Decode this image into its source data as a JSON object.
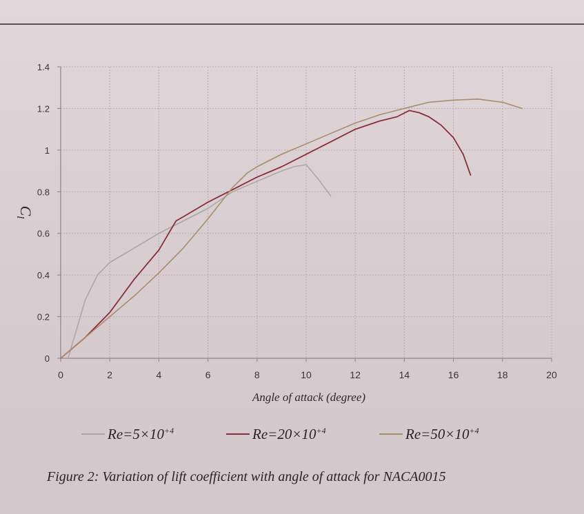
{
  "chart_data": {
    "type": "line",
    "xlabel": "Angle of attack (degree)",
    "ylabel": "Cl",
    "xlim": [
      0,
      20
    ],
    "ylim": [
      0,
      1.4
    ],
    "x_ticks": [
      "0",
      "2",
      "4",
      "6",
      "8",
      "10",
      "12",
      "14",
      "16",
      "18",
      "20"
    ],
    "y_ticks": [
      "0",
      "0.2",
      "0.4",
      "0.6",
      "0.8",
      "1",
      "1.2",
      "1.4"
    ],
    "grid": true,
    "legend_position": "bottom",
    "series": [
      {
        "name": "Re=5×10+4",
        "color": "#a9a8a8",
        "x": [
          0.3,
          1.0,
          1.5,
          2.0,
          3.0,
          4.0,
          5.0,
          6.0,
          7.0,
          8.0,
          9.0,
          9.5,
          10.0,
          10.5,
          11.0
        ],
        "y": [
          0.0,
          0.28,
          0.4,
          0.46,
          0.53,
          0.6,
          0.66,
          0.72,
          0.8,
          0.85,
          0.9,
          0.92,
          0.93,
          0.86,
          0.78
        ]
      },
      {
        "name": "Re=20×10+4",
        "color": "#8a2d3a",
        "x": [
          0.0,
          1.0,
          2.0,
          3.0,
          4.0,
          4.7,
          5.0,
          6.0,
          7.0,
          8.0,
          9.0,
          10.0,
          11.0,
          12.0,
          13.0,
          13.7,
          14.2,
          14.6,
          15.0,
          15.5,
          16.0,
          16.4,
          16.7
        ],
        "y": [
          0.0,
          0.1,
          0.22,
          0.38,
          0.52,
          0.66,
          0.68,
          0.75,
          0.81,
          0.87,
          0.92,
          0.98,
          1.04,
          1.1,
          1.14,
          1.16,
          1.19,
          1.18,
          1.16,
          1.12,
          1.06,
          0.98,
          0.88
        ]
      },
      {
        "name": "Re=50×10+4",
        "color": "#a98d6a",
        "x": [
          0.0,
          1.0,
          2.0,
          3.0,
          4.0,
          5.0,
          6.0,
          7.0,
          7.6,
          8.0,
          9.0,
          10.0,
          11.0,
          12.0,
          13.0,
          14.0,
          15.0,
          16.0,
          17.0,
          18.0,
          18.8
        ],
        "y": [
          0.0,
          0.1,
          0.2,
          0.3,
          0.41,
          0.53,
          0.67,
          0.82,
          0.89,
          0.92,
          0.98,
          1.03,
          1.08,
          1.13,
          1.17,
          1.2,
          1.23,
          1.24,
          1.245,
          1.23,
          1.2
        ]
      }
    ]
  },
  "legend_labels": [
    {
      "base": "Re=5×10",
      "sup": "+4"
    },
    {
      "base": "Re=20×10",
      "sup": "+4"
    },
    {
      "base": "Re=50×10",
      "sup": "+4"
    }
  ],
  "caption": "Figure 2: Variation of lift coefficient with angle of attack for NACA0015"
}
